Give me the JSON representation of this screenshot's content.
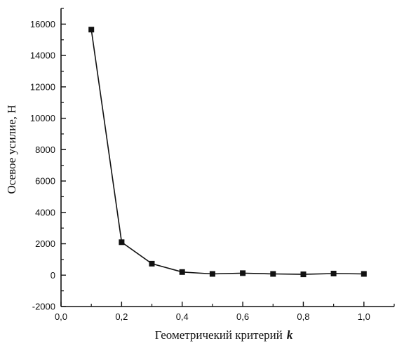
{
  "chart_data": {
    "type": "line",
    "title": "",
    "xlabel": "Геометричекий критерий",
    "xlabel_var": "k",
    "ylabel": "Осевое усилие, Н",
    "xlim": [
      0.0,
      1.1
    ],
    "ylim": [
      -2000,
      17000
    ],
    "x_ticks": [
      0.0,
      0.2,
      0.4,
      0.6,
      0.8,
      1.0
    ],
    "x_tick_labels": [
      "0,0",
      "0,2",
      "0,4",
      "0,6",
      "0,8",
      "1,0"
    ],
    "y_ticks": [
      -2000,
      0,
      2000,
      4000,
      6000,
      8000,
      10000,
      12000,
      14000,
      16000
    ],
    "y_tick_labels": [
      "-2000",
      "0",
      "2000",
      "4000",
      "6000",
      "8000",
      "10000",
      "12000",
      "14000",
      "16000"
    ],
    "grid": false,
    "legend": "none",
    "marker": "square",
    "line_color": "#111111",
    "series": [
      {
        "x": [
          0.1,
          0.2,
          0.3,
          0.4,
          0.5,
          0.6,
          0.7,
          0.8,
          0.9,
          1.0
        ],
        "values": [
          15650,
          2100,
          730,
          200,
          80,
          130,
          80,
          50,
          100,
          80
        ]
      }
    ]
  }
}
